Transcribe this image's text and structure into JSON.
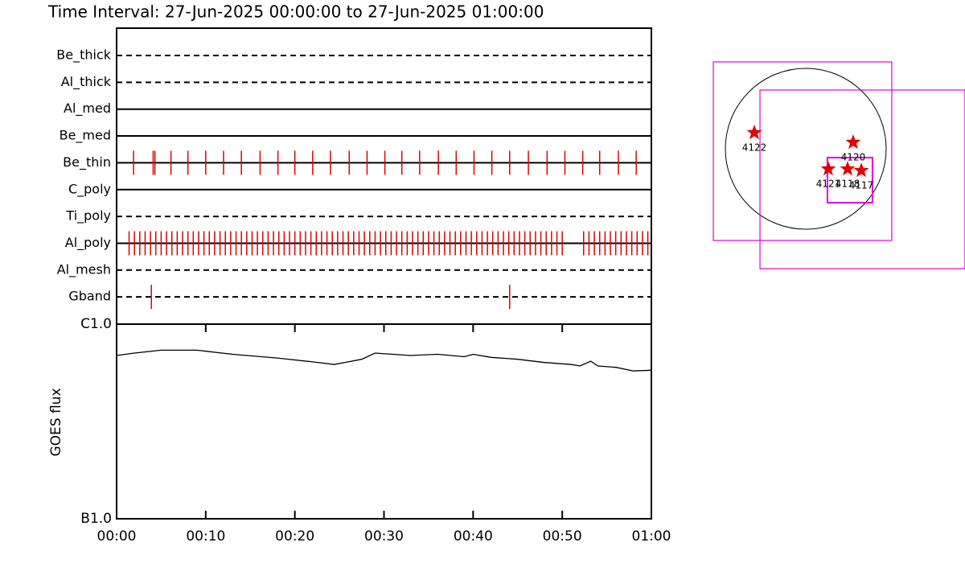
{
  "chart_data": [
    {
      "type": "timeline",
      "title": "Time Interval: 27-Jun-2025 00:00:00 to 27-Jun-2025 01:00:00",
      "color": "#e00000",
      "rows": [
        {
          "name": "Be_thick",
          "style": "dashed",
          "events": []
        },
        {
          "name": "Al_thick",
          "style": "dashed",
          "events": []
        },
        {
          "name": "Al_med",
          "style": "solid",
          "events": []
        },
        {
          "name": "Be_med",
          "style": "solid",
          "events": []
        },
        {
          "name": "Be_thin",
          "style": "solid",
          "events": [
            1.9,
            4.1,
            4.3,
            6.1,
            8.0,
            10.0,
            12.0,
            14.0,
            16.1,
            18.1,
            20.0,
            22.0,
            24.0,
            26.1,
            28.1,
            30.1,
            32.0,
            34.0,
            36.1,
            38.1,
            40.1,
            42.1,
            44.1,
            46.2,
            48.3,
            50.3,
            52.3,
            54.2,
            56.3,
            58.3
          ]
        },
        {
          "name": "C_poly",
          "style": "solid",
          "events": []
        },
        {
          "name": "Ti_poly",
          "style": "dashed",
          "events": []
        },
        {
          "name": "Al_poly",
          "style": "solid",
          "events": [
            1.4,
            2.0,
            2.6,
            3.2,
            3.8,
            4.4,
            5.0,
            5.6,
            6.2,
            6.8,
            7.4,
            8.0,
            8.6,
            9.2,
            9.8,
            10.4,
            11.0,
            11.6,
            12.2,
            12.8,
            13.4,
            14.0,
            14.6,
            15.2,
            15.8,
            16.4,
            17.0,
            17.6,
            18.2,
            18.8,
            19.4,
            20.0,
            20.6,
            21.2,
            21.8,
            22.4,
            23.0,
            23.6,
            24.2,
            24.8,
            25.4,
            26.0,
            26.6,
            27.2,
            27.8,
            28.4,
            29.0,
            29.6,
            30.2,
            30.8,
            31.4,
            32.0,
            32.6,
            33.2,
            33.8,
            34.4,
            35.0,
            35.6,
            36.2,
            36.8,
            37.4,
            38.0,
            38.6,
            39.2,
            39.8,
            40.4,
            41.0,
            41.6,
            42.2,
            42.8,
            43.4,
            44.0,
            44.6,
            45.2,
            45.8,
            46.4,
            47.0,
            47.6,
            48.2,
            48.8,
            49.4,
            50.0,
            52.4,
            53.0,
            53.6,
            54.2,
            54.8,
            55.4,
            56.0,
            56.6,
            57.2,
            57.8,
            58.4,
            59.0,
            59.6
          ]
        },
        {
          "name": "Al_mesh",
          "style": "dashed",
          "events": []
        },
        {
          "name": "Gband",
          "style": "dashed",
          "events": [
            3.9,
            44.1
          ]
        }
      ]
    },
    {
      "type": "line",
      "ylabel": "GOES flux",
      "log": true,
      "color": "#000000",
      "xlim": [
        0,
        60
      ],
      "xticks": [
        {
          "value": 0,
          "label": "00:00"
        },
        {
          "value": 10,
          "label": "00:10"
        },
        {
          "value": 20,
          "label": "00:20"
        },
        {
          "value": 30,
          "label": "00:30"
        },
        {
          "value": 40,
          "label": "00:40"
        },
        {
          "value": 50,
          "label": "00:50"
        },
        {
          "value": 60,
          "label": "01:00"
        }
      ],
      "ylim": [
        1e-07,
        1e-06
      ],
      "yticks": [
        {
          "value": 1e-07,
          "label": "B1.0"
        },
        {
          "value": 1e-06,
          "label": "C1.0"
        }
      ],
      "x": [
        0,
        2,
        5,
        9,
        13,
        18,
        22,
        24.4,
        26,
        27.5,
        29,
        31,
        33,
        36,
        39,
        40,
        42,
        45,
        48,
        51,
        52,
        53.2,
        54,
        56,
        58,
        60
      ],
      "values": [
        6.9e-07,
        7.1e-07,
        7.35e-07,
        7.35e-07,
        7e-07,
        6.7e-07,
        6.4e-07,
        6.2e-07,
        6.4e-07,
        6.6e-07,
        7.1e-07,
        7e-07,
        6.9e-07,
        7e-07,
        6.8e-07,
        7e-07,
        6.75e-07,
        6.6e-07,
        6.35e-07,
        6.2e-07,
        6.1e-07,
        6.45e-07,
        6.1e-07,
        6e-07,
        5.75e-07,
        5.8e-07
      ]
    },
    {
      "type": "map",
      "rsun": 950,
      "color": "#e00000",
      "box_color": "#e000e0",
      "boxes": [
        {
          "x": [
            -1092,
            1016
          ],
          "y": [
            -1083,
            1026
          ]
        },
        {
          "x": [
            -541,
            1880
          ],
          "y": [
            -1416,
            694
          ]
        },
        {
          "x": [
            256,
            788
          ],
          "y": [
            -637,
            -104
          ]
        }
      ],
      "regions": [
        {
          "label": "4122",
          "x": -608,
          "y": 190
        },
        {
          "label": "4120",
          "x": 560,
          "y": 76
        },
        {
          "label": "4121",
          "x": 266,
          "y": -238
        },
        {
          "label": "4118",
          "x": 494,
          "y": -238
        },
        {
          "label": "4117",
          "x": 656,
          "y": -257
        }
      ]
    }
  ]
}
